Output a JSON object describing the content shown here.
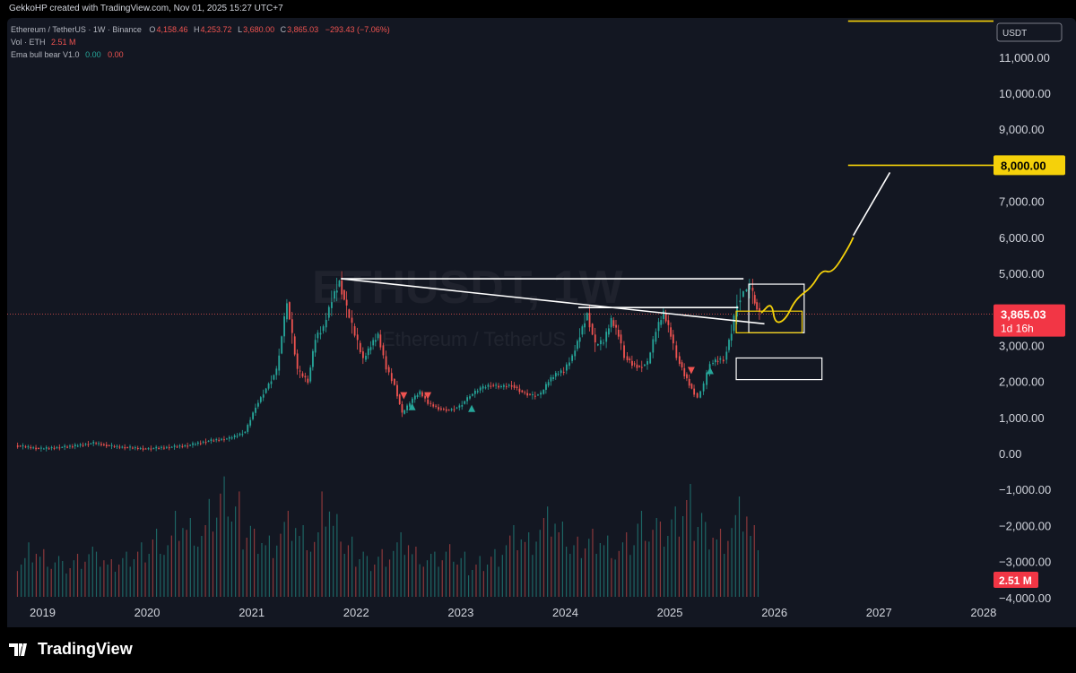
{
  "header": {
    "credit": "GekkoHP created with TradingView.com, Nov 01, 2025 15:27 UTC+7"
  },
  "legend": {
    "symbol": "Ethereum / TetherUS · 1W · Binance",
    "open_label": "O",
    "open": "4,158.46",
    "high_label": "H",
    "high": "4,253.72",
    "low_label": "L",
    "low": "3,680.00",
    "close_label": "C",
    "close": "3,865.03",
    "change": "−293.43 (−7.06%)",
    "volume_label": "Vol · ETH",
    "volume": "2.51 M",
    "indicator_label": "Ema bull bear V1.0",
    "indicator_v1": "0.00",
    "indicator_v2": "0.00"
  },
  "watermark": {
    "symbol": "ETHUSDT, 1W",
    "name": "Ethereum / TetherUS"
  },
  "chart_data": {
    "type": "candlestick",
    "title": "Ethereum / TetherUS · 1W · Binance",
    "currency_badge": "USDT",
    "y_axis": {
      "ticks": [
        11000,
        10000,
        9000,
        8000,
        7000,
        6000,
        5000,
        4000,
        3000,
        2000,
        1000,
        0,
        -1000,
        -2000,
        -3000,
        -4000
      ],
      "tick_labels": [
        "11,000.00",
        "10,000.00",
        "9,000.00",
        "8,000.00",
        "7,000.00",
        "6,000.00",
        "5,000.00",
        "4,000.00",
        "3,000.00",
        "2,000.00",
        "1,000.00",
        "0.00",
        "−1,000.00",
        "−2,000.00",
        "−3,000.00",
        "−4,000.00"
      ],
      "ylim": [
        -4000,
        11500
      ]
    },
    "x_axis": {
      "ticks": [
        2019,
        2020,
        2021,
        2022,
        2023,
        2024,
        2025,
        2026,
        2027,
        2028
      ],
      "tick_labels": [
        "2019",
        "2020",
        "2021",
        "2022",
        "2023",
        "2024",
        "2025",
        "2026",
        "2027",
        "2028"
      ],
      "xlim": [
        2018.75,
        2028.3
      ]
    },
    "price_path": [
      [
        2018.75,
        220
      ],
      [
        2019.0,
        130
      ],
      [
        2019.3,
        200
      ],
      [
        2019.5,
        290
      ],
      [
        2019.7,
        190
      ],
      [
        2019.9,
        150
      ],
      [
        2020.0,
        130
      ],
      [
        2020.2,
        170
      ],
      [
        2020.4,
        220
      ],
      [
        2020.6,
        350
      ],
      [
        2020.8,
        420
      ],
      [
        2020.95,
        600
      ],
      [
        2021.05,
        1300
      ],
      [
        2021.15,
        1800
      ],
      [
        2021.25,
        2300
      ],
      [
        2021.35,
        4200
      ],
      [
        2021.45,
        2300
      ],
      [
        2021.55,
        2000
      ],
      [
        2021.62,
        3200
      ],
      [
        2021.7,
        3500
      ],
      [
        2021.78,
        4300
      ],
      [
        2021.85,
        4800
      ],
      [
        2021.92,
        4000
      ],
      [
        2022.0,
        3300
      ],
      [
        2022.08,
        2600
      ],
      [
        2022.15,
        3000
      ],
      [
        2022.22,
        3300
      ],
      [
        2022.3,
        2400
      ],
      [
        2022.38,
        1900
      ],
      [
        2022.45,
        1100
      ],
      [
        2022.55,
        1500
      ],
      [
        2022.62,
        1700
      ],
      [
        2022.7,
        1400
      ],
      [
        2022.8,
        1250
      ],
      [
        2022.9,
        1200
      ],
      [
        2023.0,
        1300
      ],
      [
        2023.1,
        1600
      ],
      [
        2023.2,
        1800
      ],
      [
        2023.3,
        1900
      ],
      [
        2023.4,
        1850
      ],
      [
        2023.5,
        1900
      ],
      [
        2023.6,
        1700
      ],
      [
        2023.7,
        1600
      ],
      [
        2023.78,
        1650
      ],
      [
        2023.85,
        2000
      ],
      [
        2023.92,
        2200
      ],
      [
        2024.0,
        2300
      ],
      [
        2024.08,
        2700
      ],
      [
        2024.15,
        3300
      ],
      [
        2024.22,
        3900
      ],
      [
        2024.3,
        3000
      ],
      [
        2024.38,
        3100
      ],
      [
        2024.45,
        3700
      ],
      [
        2024.52,
        3300
      ],
      [
        2024.58,
        2700
      ],
      [
        2024.65,
        2500
      ],
      [
        2024.72,
        2400
      ],
      [
        2024.8,
        2500
      ],
      [
        2024.88,
        3400
      ],
      [
        2024.95,
        3900
      ],
      [
        2025.02,
        3300
      ],
      [
        2025.08,
        2700
      ],
      [
        2025.15,
        2200
      ],
      [
        2025.22,
        1800
      ],
      [
        2025.28,
        1550
      ],
      [
        2025.34,
        1900
      ],
      [
        2025.4,
        2500
      ],
      [
        2025.47,
        2600
      ],
      [
        2025.53,
        2600
      ],
      [
        2025.6,
        3400
      ],
      [
        2025.66,
        4200
      ],
      [
        2025.72,
        4500
      ],
      [
        2025.78,
        4600
      ],
      [
        2025.82,
        4200
      ],
      [
        2025.87,
        3865.03
      ]
    ],
    "volume_bars_relative": [
      0.3,
      0.4,
      0.35,
      0.3,
      0.25,
      0.3,
      0.35,
      0.3,
      0.25,
      0.3,
      0.35,
      0.4,
      0.5,
      0.45,
      0.6,
      0.55,
      0.5,
      0.65,
      0.8,
      0.7,
      0.55,
      0.5,
      0.45,
      0.55,
      0.6,
      0.5,
      0.45,
      0.7,
      0.55,
      0.4,
      0.35,
      0.3,
      0.35,
      0.4,
      0.45,
      0.35,
      0.3,
      0.3,
      0.35,
      0.3,
      0.25,
      0.3,
      0.35,
      0.45,
      0.5,
      0.45,
      0.55,
      0.6,
      0.5,
      0.4,
      0.45,
      0.5,
      0.45,
      0.4,
      0.45,
      0.6,
      0.55,
      0.5,
      0.6,
      0.75,
      0.65,
      0.55,
      0.5,
      0.6,
      0.7,
      0.5
    ],
    "last_price_label": "3,865.03",
    "countdown_label": "1d 16h",
    "volume_label": "2.51 M",
    "target_label": "8,000.00",
    "annotations": [
      {
        "type": "hline",
        "value": 8000,
        "x": [
          2026.7,
          2028.3
        ],
        "color": "#f5d10a"
      },
      {
        "type": "hline",
        "value": 12000,
        "x": [
          2026.7,
          2028.3
        ],
        "color": "#f5d10a"
      },
      {
        "type": "trendline",
        "points": [
          [
            2021.85,
            4850
          ],
          [
            2025.9,
            3600
          ]
        ],
        "color": "#ffffff"
      },
      {
        "type": "hline_segment",
        "value": 4850,
        "x": [
          2021.85,
          2025.7
        ],
        "color": "#ffffff"
      },
      {
        "type": "hline_segment",
        "value": 4050,
        "x": [
          2024.12,
          2025.65
        ],
        "color": "#ffffff"
      },
      {
        "type": "rect",
        "y": [
          3350,
          4700
        ],
        "x": [
          2025.75,
          2026.28
        ],
        "color": "#ffffff"
      },
      {
        "type": "rect",
        "y": [
          3350,
          3950
        ],
        "x": [
          2025.63,
          2026.26
        ],
        "color": "#f5d10a"
      },
      {
        "type": "rect",
        "y": [
          2050,
          2650
        ],
        "x": [
          2025.63,
          2026.45
        ],
        "color": "#ffffff"
      },
      {
        "type": "projection",
        "points": [
          [
            2025.87,
            3900
          ],
          [
            2025.97,
            4200
          ],
          [
            2026.0,
            3600
          ],
          [
            2026.1,
            3700
          ],
          [
            2026.2,
            4300
          ],
          [
            2026.35,
            4600
          ],
          [
            2026.45,
            5100
          ],
          [
            2026.55,
            5000
          ],
          [
            2026.7,
            5700
          ],
          [
            2026.75,
            6000
          ]
        ],
        "color": "#f5d10a"
      },
      {
        "type": "trendline",
        "points": [
          [
            2026.75,
            6050
          ],
          [
            2027.1,
            7800
          ]
        ],
        "color": "#ffffff"
      }
    ],
    "signals": [
      {
        "type": "sell",
        "x": 2022.45,
        "value": 1600
      },
      {
        "type": "buy",
        "x": 2022.53,
        "value": 1300
      },
      {
        "type": "sell",
        "x": 2022.68,
        "value": 1600
      },
      {
        "type": "buy",
        "x": 2023.1,
        "value": 1250
      },
      {
        "type": "sell",
        "x": 2025.2,
        "value": 2300
      },
      {
        "type": "buy",
        "x": 2025.38,
        "value": 2300
      }
    ]
  },
  "colors": {
    "up": "#26a69a",
    "down": "#ef5350",
    "background": "#131722",
    "axis_text": "#d1d4dc",
    "accent_yellow": "#f5d10a",
    "price_label_bg": "#f23645"
  },
  "footer": {
    "brand": "TradingView"
  }
}
